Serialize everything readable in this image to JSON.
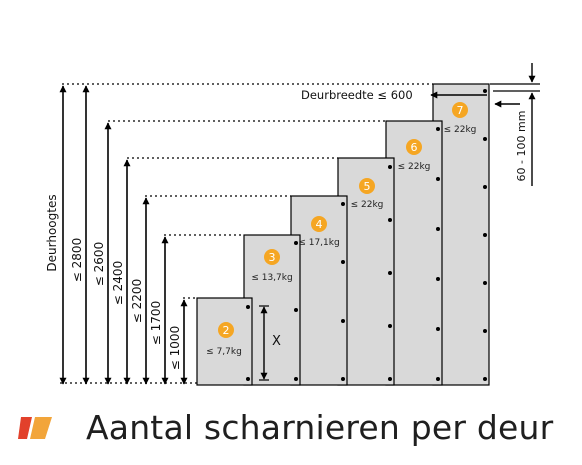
{
  "axis": {
    "height_label": "Deurhoogtes",
    "width_label": "Deurbreedte ≤ 600",
    "offset_label": "60 - 100 mm",
    "x_label": "X"
  },
  "height_limits": [
    "≤ 2800",
    "≤ 2600",
    "≤ 2400",
    "≤ 2200",
    "≤ 1700",
    "≤ 1000"
  ],
  "doors": [
    {
      "hinges": "2",
      "weight": "≤ 7,7kg"
    },
    {
      "hinges": "3",
      "weight": "≤ 13,7kg"
    },
    {
      "hinges": "4",
      "weight": "≤ 17,1kg"
    },
    {
      "hinges": "5",
      "weight": "≤ 22kg"
    },
    {
      "hinges": "6",
      "weight": "≤ 22kg"
    },
    {
      "hinges": "7",
      "weight": "≤ 22kg"
    }
  ],
  "footer": {
    "title": "Aantal scharnieren per deur"
  },
  "colors": {
    "accent": "#f5a623",
    "panel": "#d9d9d9",
    "logo_red": "#e2412b",
    "logo_orange": "#f2a53a"
  }
}
